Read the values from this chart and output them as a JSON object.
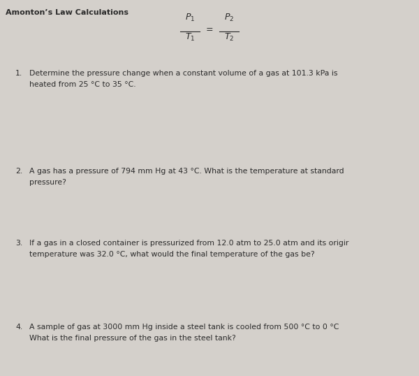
{
  "title": "Amonton’s Law Calculations",
  "formula_num": "$P_1$       $P_2$",
  "formula_den": "$T_1$        $T_2$",
  "formula_eq": "=",
  "questions": [
    {
      "number": "1.",
      "lines": [
        "Determine the pressure change when a constant volume of a gas at 101.3 kPa is",
        "heated from 25 °C to 35 °C."
      ]
    },
    {
      "number": "2.",
      "lines": [
        "A gas has a pressure of 794 mm Hg at 43 °C. What is the temperature at standard",
        "pressure?"
      ]
    },
    {
      "number": "3.",
      "lines": [
        "If a gas in a closed container is pressurized from 12.0 atm to 25.0 atm and its origir",
        "temperature was 32.0 °C, what would the final temperature of the gas be?"
      ]
    },
    {
      "number": "4.",
      "lines": [
        "A sample of gas at 3000 mm Hg inside a steel tank is cooled from 500 °C to 0 °C",
        "What is the final pressure of the gas in the steel tank?"
      ]
    }
  ],
  "bg_color": "#d4d0cb",
  "text_color": "#2a2a2a",
  "title_fontsize": 8,
  "body_fontsize": 7.8,
  "formula_fontsize": 9,
  "fig_width": 6.0,
  "fig_height": 5.38,
  "dpi": 100
}
